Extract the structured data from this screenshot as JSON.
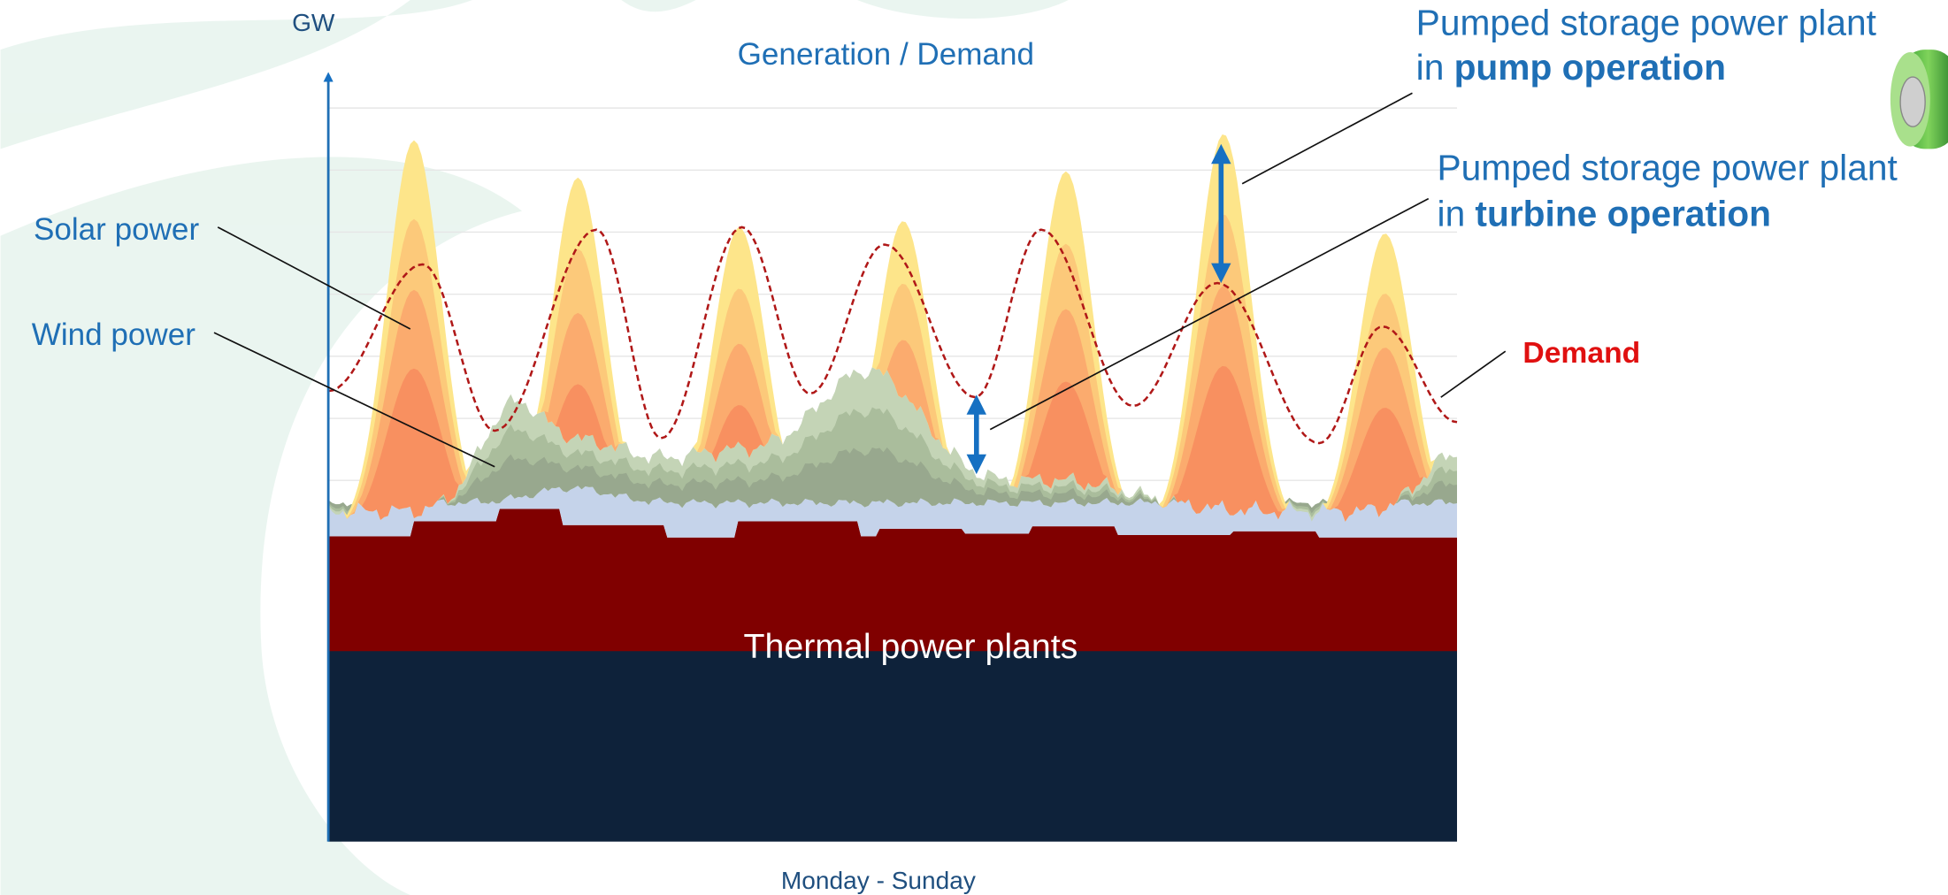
{
  "axis": {
    "y_label": "GW",
    "x_label": "Monday - Sunday"
  },
  "title": "Generation / Demand",
  "labels": {
    "solar": "Solar power",
    "wind": "Wind power",
    "demand": "Demand",
    "thermal": "Thermal power plants"
  },
  "pump": {
    "line1": "Pumped storage power plant",
    "prefix": "in",
    "bold": "pump operation"
  },
  "turbine": {
    "line1": "Pumped storage power plant",
    "prefix": "in",
    "bold": "turbine operation"
  }
}
